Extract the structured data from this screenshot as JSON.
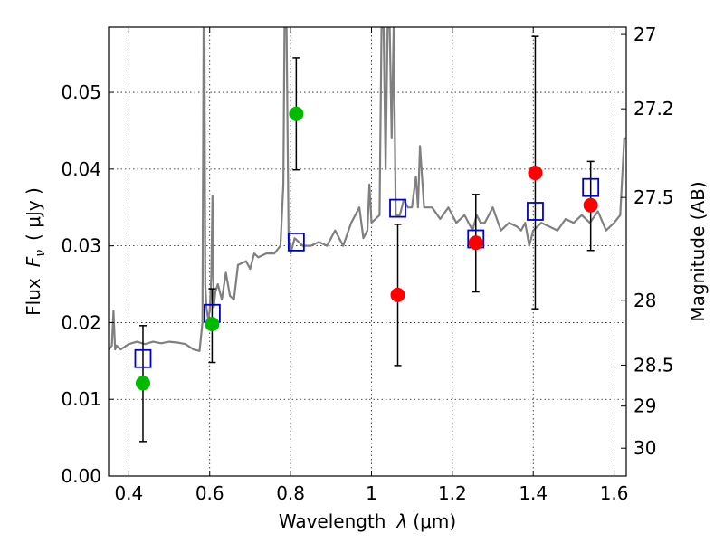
{
  "chart_data": {
    "type": "scatter",
    "xlabel_prefix": "Wavelength",
    "xlabel_sym": "λ",
    "xlabel_unit": "(μm)",
    "ylabel_left_prefix": "Flux",
    "ylabel_left_sym": "F",
    "ylabel_left_sub": "ν",
    "ylabel_left_unit": "( μJy )",
    "ylabel_right": "Magnitude (AB)",
    "xlim": [
      0.35,
      1.63
    ],
    "ylim": [
      0.0,
      0.0585
    ],
    "x_ticks": [
      {
        "v": 0.4,
        "label": "0.4"
      },
      {
        "v": 0.6,
        "label": "0.6"
      },
      {
        "v": 0.8,
        "label": "0.8"
      },
      {
        "v": 1.0,
        "label": "1"
      },
      {
        "v": 1.2,
        "label": "1.2"
      },
      {
        "v": 1.4,
        "label": "1.4"
      },
      {
        "v": 1.6,
        "label": "1.6"
      }
    ],
    "y_ticks": [
      {
        "v": 0.0,
        "label": "0.00"
      },
      {
        "v": 0.01,
        "label": "0.01"
      },
      {
        "v": 0.02,
        "label": "0.02"
      },
      {
        "v": 0.03,
        "label": "0.03"
      },
      {
        "v": 0.04,
        "label": "0.04"
      },
      {
        "v": 0.05,
        "label": "0.05"
      }
    ],
    "mag_ticks": [
      {
        "v": 27.0,
        "label": "27"
      },
      {
        "v": 27.2,
        "label": "27.2"
      },
      {
        "v": 27.5,
        "label": "27.5"
      },
      {
        "v": 28.0,
        "label": "28"
      },
      {
        "v": 28.5,
        "label": "28.5"
      },
      {
        "v": 29.0,
        "label": "29"
      },
      {
        "v": 30.0,
        "label": "30"
      }
    ],
    "grid": true,
    "series": [
      {
        "kind": "spectrum",
        "color": "#808080",
        "x": [
          0.35,
          0.358,
          0.362,
          0.366,
          0.37,
          0.38,
          0.4,
          0.42,
          0.44,
          0.46,
          0.48,
          0.5,
          0.52,
          0.54,
          0.56,
          0.575,
          0.582,
          0.585,
          0.587,
          0.589,
          0.592,
          0.596,
          0.6,
          0.604,
          0.607,
          0.61,
          0.614,
          0.62,
          0.63,
          0.64,
          0.65,
          0.66,
          0.67,
          0.69,
          0.7,
          0.71,
          0.72,
          0.74,
          0.76,
          0.775,
          0.782,
          0.785,
          0.79,
          0.795,
          0.8,
          0.81,
          0.83,
          0.85,
          0.87,
          0.89,
          0.91,
          0.93,
          0.95,
          0.97,
          0.98,
          0.99,
          0.995,
          1.0,
          1.01,
          1.02,
          1.025,
          1.03,
          1.035,
          1.04,
          1.045,
          1.05,
          1.055,
          1.06,
          1.07,
          1.08,
          1.09,
          1.1,
          1.11,
          1.115,
          1.12,
          1.13,
          1.15,
          1.17,
          1.19,
          1.21,
          1.23,
          1.25,
          1.26,
          1.27,
          1.28,
          1.3,
          1.32,
          1.34,
          1.36,
          1.37,
          1.38,
          1.39,
          1.4,
          1.42,
          1.44,
          1.46,
          1.48,
          1.5,
          1.52,
          1.54,
          1.56,
          1.58,
          1.6,
          1.615,
          1.625,
          1.63
        ],
        "y": [
          0.0165,
          0.017,
          0.0215,
          0.0165,
          0.017,
          0.0165,
          0.0172,
          0.0175,
          0.0172,
          0.0175,
          0.0173,
          0.0175,
          0.0174,
          0.0172,
          0.0165,
          0.0163,
          0.02,
          0.0585,
          0.0585,
          0.025,
          0.022,
          0.0205,
          0.0215,
          0.026,
          0.0365,
          0.022,
          0.024,
          0.025,
          0.023,
          0.0265,
          0.0235,
          0.023,
          0.0275,
          0.028,
          0.027,
          0.029,
          0.0285,
          0.029,
          0.029,
          0.03,
          0.038,
          0.0585,
          0.0585,
          0.031,
          0.029,
          0.031,
          0.03,
          0.03,
          0.0305,
          0.03,
          0.032,
          0.03,
          0.033,
          0.035,
          0.031,
          0.032,
          0.038,
          0.033,
          0.0335,
          0.034,
          0.0585,
          0.0585,
          0.04,
          0.0585,
          0.0585,
          0.044,
          0.0585,
          0.034,
          0.034,
          0.036,
          0.035,
          0.035,
          0.039,
          0.035,
          0.043,
          0.035,
          0.035,
          0.0335,
          0.035,
          0.033,
          0.034,
          0.032,
          0.034,
          0.033,
          0.033,
          0.035,
          0.032,
          0.033,
          0.0325,
          0.032,
          0.033,
          0.03,
          0.032,
          0.033,
          0.0325,
          0.032,
          0.0335,
          0.033,
          0.034,
          0.033,
          0.0345,
          0.032,
          0.033,
          0.034,
          0.044,
          0.044
        ]
      },
      {
        "kind": "model-box",
        "color": "#0000cc",
        "x": [
          0.435,
          0.606,
          0.814,
          1.065,
          1.258,
          1.405,
          1.542
        ],
        "y": [
          0.0153,
          0.0212,
          0.0305,
          0.0349,
          0.0309,
          0.0345,
          0.0376
        ]
      },
      {
        "kind": "observed-green",
        "color": "#00bb00",
        "x": [
          0.435,
          0.606,
          0.814
        ],
        "y": [
          0.0121,
          0.0198,
          0.0472
        ],
        "yerr_low": [
          0.0045,
          0.0148,
          0.0399
        ],
        "yerr_high": [
          0.0196,
          0.0244,
          0.0545
        ]
      },
      {
        "kind": "observed-red",
        "color": "#ff0000",
        "x": [
          1.065,
          1.258,
          1.405,
          1.542
        ],
        "y": [
          0.0236,
          0.0304,
          0.0395,
          0.0353
        ],
        "yerr_low": [
          0.0144,
          0.024,
          0.0218,
          0.0294
        ],
        "yerr_high": [
          0.0328,
          0.0367,
          0.0573,
          0.041
        ]
      }
    ]
  }
}
